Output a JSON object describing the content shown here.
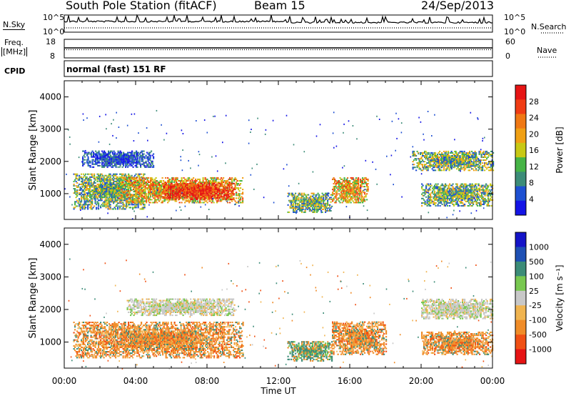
{
  "header": {
    "station": "South Pole Station (fitACF)",
    "beam": "Beam 15",
    "date": "24/Sep/2013"
  },
  "left_labels": {
    "nsky": "N.Sky",
    "freq_line1": "Freq.",
    "freq_line2": "[MHz]",
    "cpid": "CPID"
  },
  "right_labels": {
    "nsearch": "N.Search",
    "nave": "Nave"
  },
  "nsky_ticks": [
    "10^5",
    "10^0"
  ],
  "nsearch_ticks": [
    "10^5",
    "10^0"
  ],
  "freq_ticks": [
    "18",
    "8"
  ],
  "nave_ticks": [
    "60",
    "0"
  ],
  "cpid_text": "normal (fast) 151 RF",
  "colors": {
    "power": [
      "#1414e6",
      "#1e50d2",
      "#3c8c78",
      "#46b446",
      "#c8c814",
      "#f0a014",
      "#f07814",
      "#f03c14",
      "#e61414"
    ],
    "velocity": [
      "#e61414",
      "#f05014",
      "#f08c28",
      "#f0b450",
      "#c8c8c8",
      "#78c850",
      "#3c8c78",
      "#1e50b4",
      "#1414c8"
    ]
  },
  "chart_data": [
    {
      "type": "heatmap",
      "parameter": "power",
      "ylabel": "Slant Range [km]",
      "ylim": [
        200,
        4500
      ],
      "y_ticks": [
        "1000",
        "2000",
        "3000",
        "4000"
      ],
      "xlim": [
        "00:00",
        "24:00"
      ],
      "x_ticks": [
        "00:00",
        "04:00",
        "08:00",
        "12:00",
        "16:00",
        "20:00",
        "00:00"
      ],
      "colorbar_label": "Power [dB]",
      "colorbar_ticks": [
        "28",
        "24",
        "20",
        "16",
        "12",
        "8",
        "4"
      ],
      "colorbar_range": [
        0,
        30
      ],
      "regions": [
        {
          "t": [
            0.5,
            4.5
          ],
          "r": [
            500,
            1600
          ],
          "level": "medium"
        },
        {
          "t": [
            3.0,
            10.0
          ],
          "r": [
            700,
            1500
          ],
          "level": "high"
        },
        {
          "t": [
            5.5,
            9.5
          ],
          "r": [
            800,
            1300
          ],
          "level": "very high"
        },
        {
          "t": [
            1.0,
            5.0
          ],
          "r": [
            1800,
            2300
          ],
          "level": "low"
        },
        {
          "t": [
            12.5,
            15.0
          ],
          "r": [
            400,
            1000
          ],
          "level": "medium"
        },
        {
          "t": [
            15.0,
            17.0
          ],
          "r": [
            700,
            1500
          ],
          "level": "high"
        },
        {
          "t": [
            19.5,
            24.0
          ],
          "r": [
            1700,
            2300
          ],
          "level": "medium"
        },
        {
          "t": [
            20.0,
            24.0
          ],
          "r": [
            600,
            1300
          ],
          "level": "medium"
        }
      ]
    },
    {
      "type": "heatmap",
      "parameter": "velocity",
      "ylabel": "Slant Range [km]",
      "ylim": [
        200,
        4500
      ],
      "y_ticks": [
        "1000",
        "2000",
        "3000",
        "4000"
      ],
      "xlim": [
        "00:00",
        "24:00"
      ],
      "x_ticks": [
        "00:00",
        "04:00",
        "08:00",
        "12:00",
        "16:00",
        "20:00",
        "00:00"
      ],
      "xlabel": "Time UT",
      "colorbar_label": "Velocity [m s⁻¹]",
      "colorbar_ticks": [
        "1000",
        "500",
        "100",
        "25",
        "-25",
        "-100",
        "-500",
        "-1000"
      ],
      "regions": [
        {
          "t": [
            0.5,
            10.0
          ],
          "r": [
            500,
            1600
          ],
          "sign": "negative"
        },
        {
          "t": [
            3.5,
            9.5
          ],
          "r": [
            1800,
            2300
          ],
          "sign": "near zero"
        },
        {
          "t": [
            12.5,
            15.0
          ],
          "r": [
            400,
            1000
          ],
          "sign": "positive"
        },
        {
          "t": [
            15.0,
            18.0
          ],
          "r": [
            600,
            1600
          ],
          "sign": "negative"
        },
        {
          "t": [
            20.0,
            24.0
          ],
          "r": [
            1700,
            2300
          ],
          "sign": "near zero"
        },
        {
          "t": [
            20.0,
            24.0
          ],
          "r": [
            600,
            1300
          ],
          "sign": "negative"
        }
      ]
    }
  ]
}
